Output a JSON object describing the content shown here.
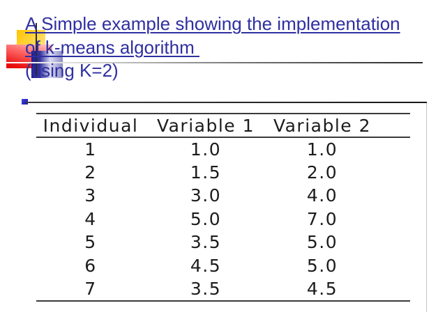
{
  "slide": {
    "title": {
      "line1": "A Simple example showing the implementation",
      "line2": "of k-means algorithm ",
      "line3": "(using K=2)"
    },
    "colors": {
      "title_blue": "#2f2fa2",
      "table_text": "#1c1c1c",
      "rule_dark": "#3a3a3a",
      "accent_yellow": "#ffc504",
      "accent_red": "#e80a0a",
      "accent_blue": "#1e1e96"
    },
    "table": {
      "headers": [
        "Individual",
        "Variable 1",
        "Variable 2"
      ],
      "rows": [
        [
          "1",
          "1.0",
          "1.0"
        ],
        [
          "2",
          "1.5",
          "2.0"
        ],
        [
          "3",
          "3.0",
          "4.0"
        ],
        [
          "4",
          "5.0",
          "7.0"
        ],
        [
          "5",
          "3.5",
          "5.0"
        ],
        [
          "6",
          "4.5",
          "5.0"
        ],
        [
          "7",
          "3.5",
          "4.5"
        ]
      ]
    }
  }
}
